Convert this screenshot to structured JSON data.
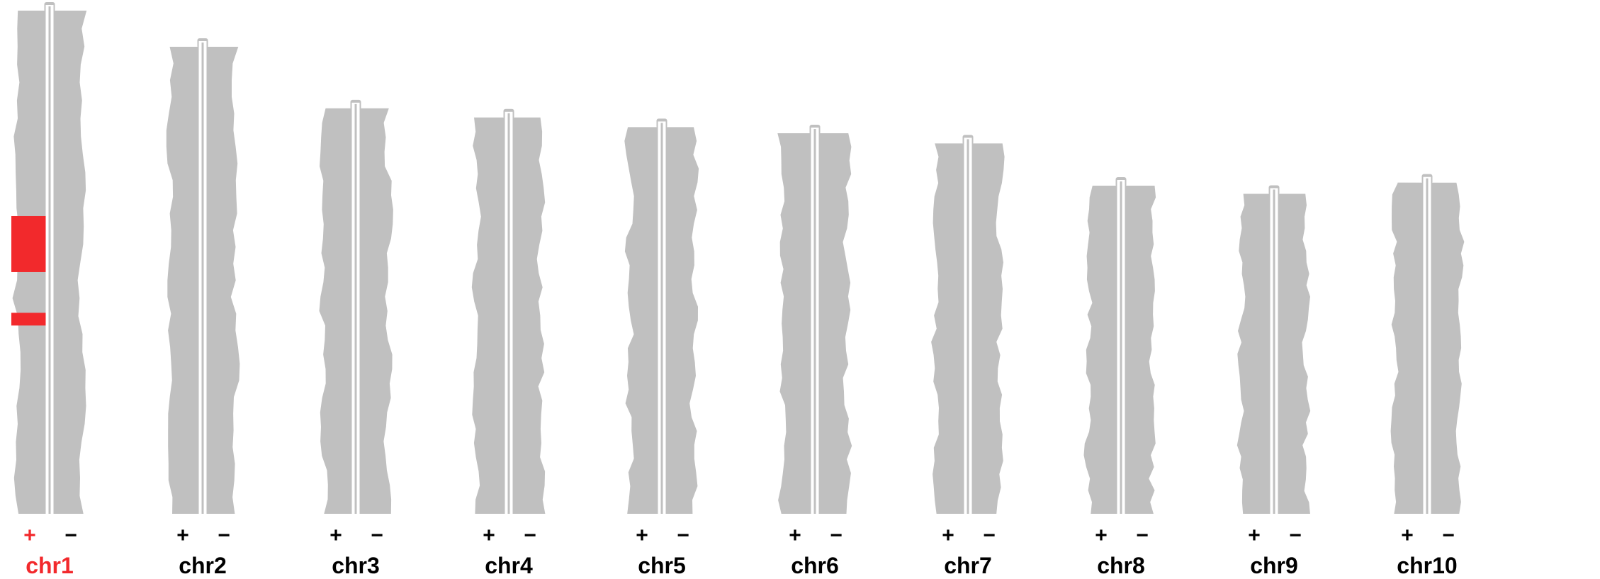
{
  "chart_data": {
    "type": "ideogram",
    "title": "",
    "colors": {
      "track": "#c0c0c0",
      "divider": "#ffffff",
      "highlight": "#f2292c",
      "label_default": "#000000",
      "label_highlight": "#f2292c"
    },
    "chromosomes": [
      {
        "name": "chr1",
        "relative_length": 1.0,
        "highlight": true,
        "plus_label": "+",
        "minus_label": "−",
        "highlights": [
          {
            "strand": "+",
            "start": 0.415,
            "end": 0.525
          },
          {
            "strand": "+",
            "start": 0.605,
            "end": 0.63
          }
        ]
      },
      {
        "name": "chr2",
        "relative_length": 0.929,
        "highlight": false,
        "plus_label": "+",
        "minus_label": "−",
        "highlights": []
      },
      {
        "name": "chr3",
        "relative_length": 0.808,
        "highlight": false,
        "plus_label": "+",
        "minus_label": "−",
        "highlights": []
      },
      {
        "name": "chr4",
        "relative_length": 0.79,
        "highlight": false,
        "plus_label": "+",
        "minus_label": "−",
        "highlights": []
      },
      {
        "name": "chr5",
        "relative_length": 0.771,
        "highlight": false,
        "plus_label": "+",
        "minus_label": "−",
        "highlights": []
      },
      {
        "name": "chr6",
        "relative_length": 0.759,
        "highlight": false,
        "plus_label": "+",
        "minus_label": "−",
        "highlights": []
      },
      {
        "name": "chr7",
        "relative_length": 0.739,
        "highlight": false,
        "plus_label": "+",
        "minus_label": "−",
        "highlights": []
      },
      {
        "name": "chr8",
        "relative_length": 0.656,
        "highlight": false,
        "plus_label": "+",
        "minus_label": "−",
        "highlights": []
      },
      {
        "name": "chr9",
        "relative_length": 0.64,
        "highlight": false,
        "plus_label": "+",
        "minus_label": "−",
        "highlights": []
      },
      {
        "name": "chr10",
        "relative_length": 0.662,
        "highlight": false,
        "plus_label": "+",
        "minus_label": "−",
        "highlights": []
      }
    ]
  }
}
